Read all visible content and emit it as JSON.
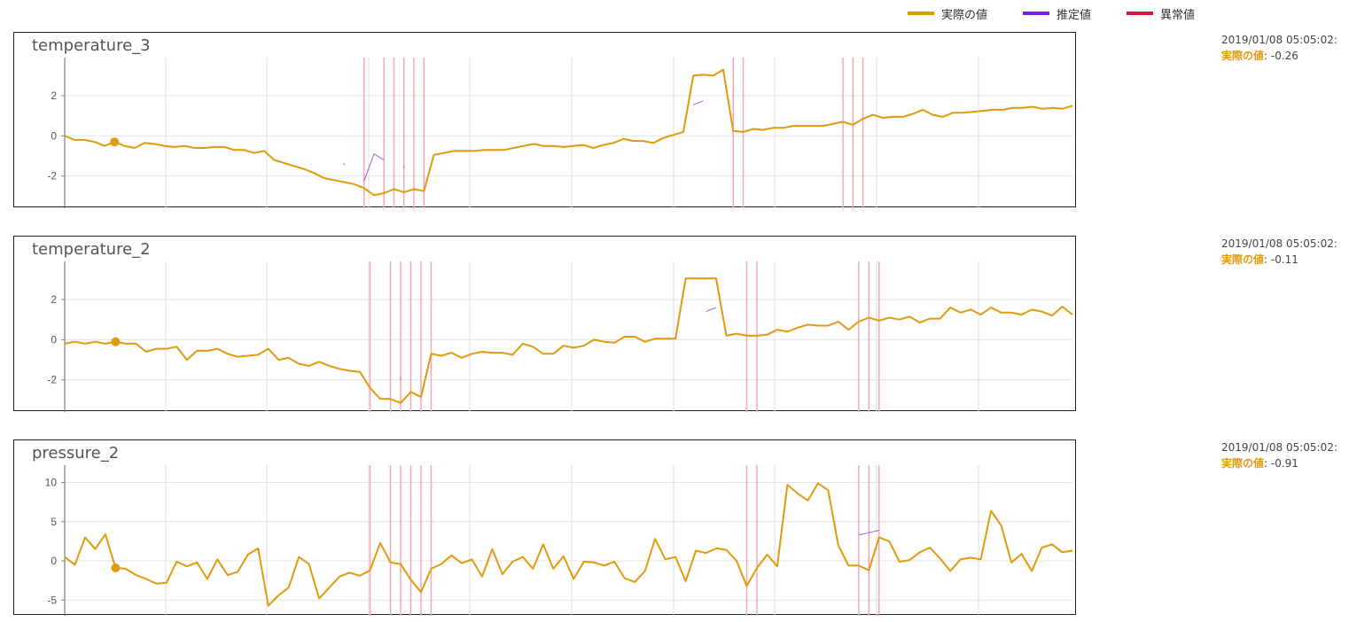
{
  "legend": [
    {
      "label": "実際の値",
      "color": "#e09a0d"
    },
    {
      "label": "推定値",
      "color": "#7a1fd6"
    },
    {
      "label": "異常値",
      "color": "#d8173c"
    }
  ],
  "marker_index": 5,
  "anomaly_indices": [
    30,
    32,
    33,
    34,
    35,
    36,
    67,
    68,
    78,
    79,
    80
  ],
  "chart_data": [
    {
      "type": "line",
      "title": "temperature_3",
      "ylim": [
        -3.6,
        3.9
      ],
      "yticks": [
        -2,
        0,
        2
      ],
      "readout": {
        "time": "2019/01/08 05:05:02:",
        "label": "実際の値",
        "value": ": -0.26"
      },
      "series": [
        {
          "name": "実際の値",
          "color": "#e09a0d",
          "values": [
            0,
            -0.2,
            -0.2,
            -0.3,
            -0.5,
            -0.3,
            -0.5,
            -0.6,
            -0.35,
            -0.4,
            -0.5,
            -0.55,
            -0.5,
            -0.6,
            -0.6,
            -0.55,
            -0.55,
            -0.7,
            -0.7,
            -0.85,
            -0.75,
            -1.2,
            -1.35,
            -1.5,
            -1.65,
            -1.85,
            -2.1,
            -2.2,
            -2.3,
            -2.4,
            -2.6,
            -2.95,
            -2.85,
            -2.65,
            -2.8,
            -2.65,
            -2.75,
            -0.95,
            -0.85,
            -0.75,
            -0.75,
            -0.75,
            -0.7,
            -0.7,
            -0.7,
            -0.6,
            -0.5,
            -0.4,
            -0.5,
            -0.5,
            -0.55,
            -0.5,
            -0.45,
            -0.6,
            -0.45,
            -0.35,
            -0.15,
            -0.25,
            -0.25,
            -0.35,
            -0.1,
            0.05,
            0.2,
            3,
            3.05,
            3,
            3.3,
            0.25,
            0.2,
            0.35,
            0.3,
            0.4,
            0.4,
            0.5,
            0.5,
            0.5,
            0.5,
            0.6,
            0.7,
            0.55,
            0.85,
            1.05,
            0.9,
            0.95,
            0.95,
            1.1,
            1.3,
            1.05,
            0.95,
            1.15,
            1.15,
            1.2,
            1.25,
            1.3,
            1.3,
            1.4,
            1.4,
            1.45,
            1.35,
            1.4,
            1.35,
            1.5
          ]
        },
        {
          "color": "#7a1fd6",
          "segments": [
            [
              [
                28,
                -1.45
              ],
              [
                28,
                -1.35
              ]
            ],
            [
              [
                30,
                -2.25
              ],
              [
                31,
                -0.9
              ],
              [
                32,
                -1.2
              ]
            ],
            [
              [
                34,
                -1.5
              ],
              [
                34,
                -1.6
              ]
            ],
            [
              [
                63,
                1.55
              ],
              [
                64,
                1.75
              ]
            ]
          ]
        }
      ]
    },
    {
      "type": "line",
      "title": "temperature_2",
      "ylim": [
        -3.6,
        3.9
      ],
      "yticks": [
        -2,
        0,
        2
      ],
      "readout": {
        "time": "2019/01/08 05:05:02:",
        "label": "実際の値",
        "value": ": -0.11"
      },
      "series": [
        {
          "name": "実際の値",
          "color": "#e09a0d",
          "values": [
            -0.2,
            -0.1,
            -0.2,
            -0.1,
            -0.2,
            -0.1,
            -0.2,
            -0.2,
            -0.6,
            -0.45,
            -0.45,
            -0.35,
            -1,
            -0.55,
            -0.55,
            -0.45,
            -0.7,
            -0.85,
            -0.8,
            -0.75,
            -0.45,
            -1,
            -0.9,
            -1.2,
            -1.3,
            -1.1,
            -1.3,
            -1.45,
            -1.55,
            -1.6,
            -2.4,
            -2.95,
            -2.95,
            -3.15,
            -2.6,
            -2.85,
            -0.7,
            -0.8,
            -0.65,
            -0.9,
            -0.7,
            -0.6,
            -0.65,
            -0.65,
            -0.75,
            -0.2,
            -0.35,
            -0.7,
            -0.7,
            -0.3,
            -0.4,
            -0.3,
            0,
            -0.1,
            -0.15,
            0.15,
            0.15,
            -0.1,
            0.05,
            0.05,
            0.05,
            3.05,
            3.05,
            3.05,
            3.05,
            0.2,
            0.3,
            0.2,
            0.2,
            0.25,
            0.5,
            0.4,
            0.6,
            0.75,
            0.7,
            0.7,
            0.9,
            0.5,
            0.9,
            1.1,
            0.95,
            1.1,
            1,
            1.15,
            0.85,
            1.05,
            1.05,
            1.6,
            1.35,
            1.5,
            1.25,
            1.6,
            1.35,
            1.35,
            1.25,
            1.5,
            1.4,
            1.2,
            1.65,
            1.25
          ]
        },
        {
          "color": "#7a1fd6",
          "segments": [
            [
              [
                33,
                -2
              ],
              [
                33,
                -1.9
              ]
            ],
            [
              [
                63,
                1.4
              ],
              [
                64,
                1.6
              ]
            ]
          ]
        }
      ]
    },
    {
      "type": "line",
      "title": "pressure_2",
      "ylim": [
        -7,
        12.2
      ],
      "yticks": [
        -5,
        0,
        5,
        10
      ],
      "readout": {
        "time": "2019/01/08 05:05:02:",
        "label": "実際の値",
        "value": ": -0.91"
      },
      "series": [
        {
          "name": "実際の値",
          "color": "#e09a0d",
          "values": [
            0.5,
            -0.5,
            3,
            1.5,
            3.4,
            -0.9,
            -1,
            -1.8,
            -2.3,
            -2.9,
            -2.8,
            -0.1,
            -0.7,
            -0.2,
            -2.3,
            0.2,
            -1.8,
            -1.4,
            0.8,
            1.6,
            -5.7,
            -4.4,
            -3.4,
            0.5,
            -0.4,
            -4.8,
            -3.4,
            -2,
            -1.5,
            -1.9,
            -1.2,
            2.3,
            -0.2,
            -0.4,
            -2.4,
            -4,
            -1,
            -0.4,
            0.7,
            -0.3,
            0.2,
            -2,
            1.5,
            -1.7,
            -0.1,
            0.5,
            -1,
            2.1,
            -1,
            0.6,
            -2.3,
            -0.1,
            -0.2,
            -0.6,
            -0.1,
            -2.2,
            -2.7,
            -1.3,
            2.8,
            0.2,
            0.5,
            -2.6,
            1.3,
            1,
            1.6,
            1.4,
            0,
            -3.2,
            -0.9,
            0.8,
            -0.7,
            9.7,
            8.6,
            7.7,
            9.9,
            9,
            2,
            -0.6,
            -0.6,
            -1.2,
            3,
            2.5,
            -0.1,
            0.1,
            1.1,
            1.7,
            0.3,
            -1.3,
            0.2,
            0.4,
            0.2,
            6.4,
            4.5,
            -0.2,
            0.9,
            -1.3,
            1.7,
            2.1,
            1.1,
            1.3
          ]
        },
        {
          "color": "#7a1fd6",
          "segments": [
            [
              [
                78,
                3.3
              ],
              [
                80,
                3.9
              ]
            ]
          ]
        }
      ]
    }
  ]
}
